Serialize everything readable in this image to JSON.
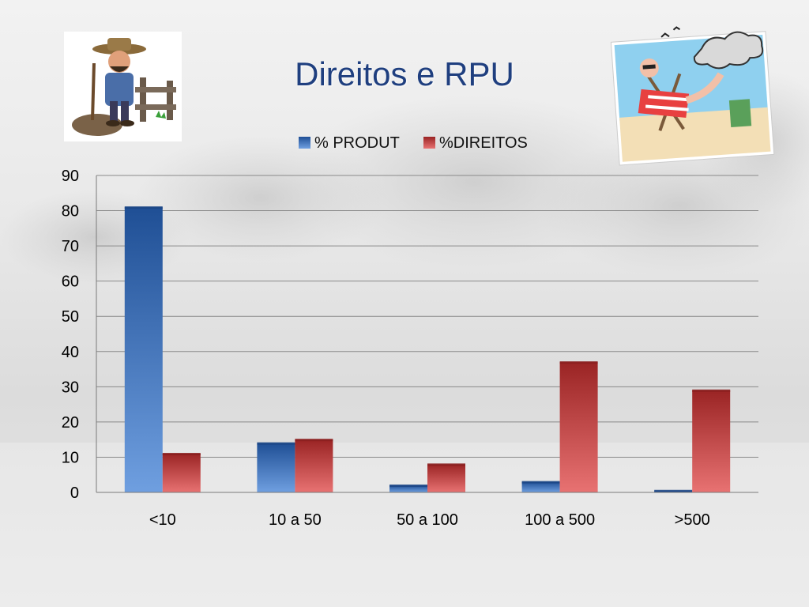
{
  "slide": {
    "title": "Direitos e RPU"
  },
  "images": {
    "left_clipart": "farmer-with-shovel-clipart",
    "right_clipart": "man-relaxing-in-beach-chair-clipart"
  },
  "chart_data": {
    "type": "bar",
    "categories": [
      "<10",
      "10 a 50",
      "50 a 100",
      "100 a 500",
      ">500"
    ],
    "series": [
      {
        "name": "% PRODUT",
        "values": [
          81,
          14,
          2,
          3,
          0.5
        ],
        "color": "#3f78c9"
      },
      {
        "name": "%DIREITOS",
        "values": [
          11,
          15,
          8,
          37,
          29
        ],
        "color": "#c94444"
      }
    ],
    "ylim": [
      0,
      90
    ],
    "yticks": [
      "0",
      "10",
      "20",
      "30",
      "40",
      "50",
      "60",
      "70",
      "80",
      "90"
    ],
    "grid": true,
    "legend_position": "top"
  }
}
